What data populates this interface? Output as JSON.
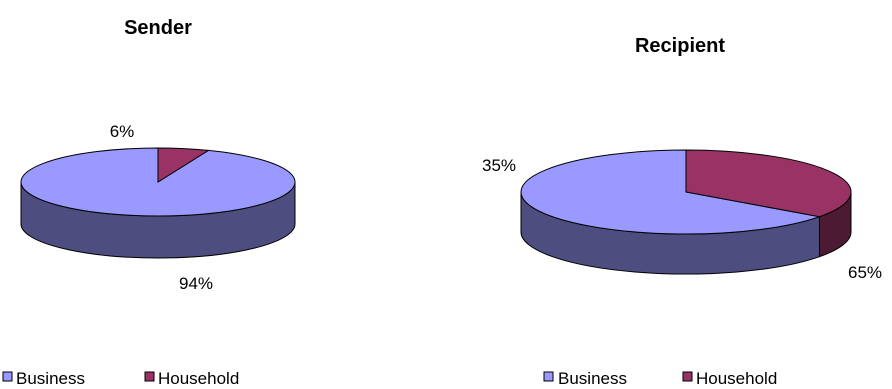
{
  "chart_data": [
    {
      "type": "pie",
      "title": "Sender",
      "style": "3d",
      "legend_position": "bottom-left",
      "slices": [
        {
          "label": "Business",
          "value": 94,
          "display": "94%"
        },
        {
          "label": "Household",
          "value": 6,
          "display": "6%"
        }
      ],
      "legend": [
        "Business",
        "Household"
      ]
    },
    {
      "type": "pie",
      "title": "Recipient",
      "style": "3d",
      "legend_position": "bottom-right",
      "slices": [
        {
          "label": "Business",
          "value": 65,
          "display": "65%"
        },
        {
          "label": "Household",
          "value": 35,
          "display": "35%"
        }
      ],
      "legend": [
        "Business",
        "Household"
      ]
    }
  ],
  "colors": {
    "business_top": "#9999ff",
    "business_side": "#4d4d80",
    "household_top": "#993366",
    "household_side": "#4d1a33",
    "outline": "#000000"
  }
}
